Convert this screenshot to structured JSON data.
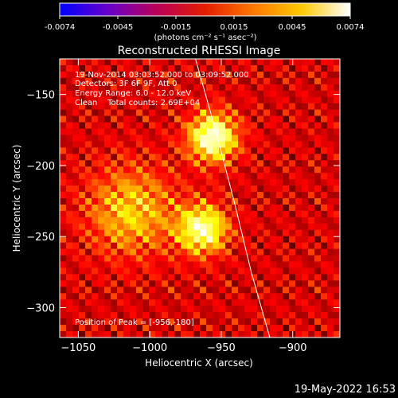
{
  "colorbar": {
    "ticks": [
      "-0.0074",
      "-0.0045",
      "-0.0015",
      "0.0015",
      "0.0045",
      "0.0074"
    ],
    "unit_label": "(photons cm⁻² s⁻¹ asec⁻²)"
  },
  "title": "Reconstructed RHESSI Image",
  "annotations": {
    "line1": "19-Nov-2014 03:03:52.000 to 03:09:52.000",
    "line2": "Detectors: 3F 6F 9F, Att 0",
    "line3": "Energy Range: 6.0 - 12.0 keV",
    "line4": "Clean    Total counts: 2.69E+04",
    "peak": "Position of Peak = [-956,-180]"
  },
  "footer": "19-May-2022 16:53",
  "chart_data": {
    "type": "heatmap",
    "title": "Reconstructed RHESSI Image",
    "xlabel": "Heliocentric X (arcsec)",
    "ylabel": "Heliocentric Y (arcsec)",
    "xlim": [
      -1063,
      -867
    ],
    "ylim": [
      -321,
      -125
    ],
    "x_ticks": [
      -1050,
      -1000,
      -950,
      -900
    ],
    "y_ticks": [
      -150,
      -200,
      -250,
      -300
    ],
    "color_range": [
      -0.0074,
      0.0074
    ],
    "colormap": "hot",
    "sources": [
      {
        "x": -956,
        "y": -180,
        "relative_intensity": 1.0
      },
      {
        "x": -963,
        "y": -245,
        "relative_intensity": 0.9
      },
      {
        "x": -1013,
        "y": -232,
        "relative_intensity": 0.55
      }
    ],
    "limb_curve": [
      [
        -968,
        -125
      ],
      [
        -954,
        -175
      ],
      [
        -941,
        -225
      ],
      [
        -929,
        -275
      ],
      [
        -916,
        -321
      ]
    ],
    "peak_position": [
      -956,
      -180
    ]
  }
}
